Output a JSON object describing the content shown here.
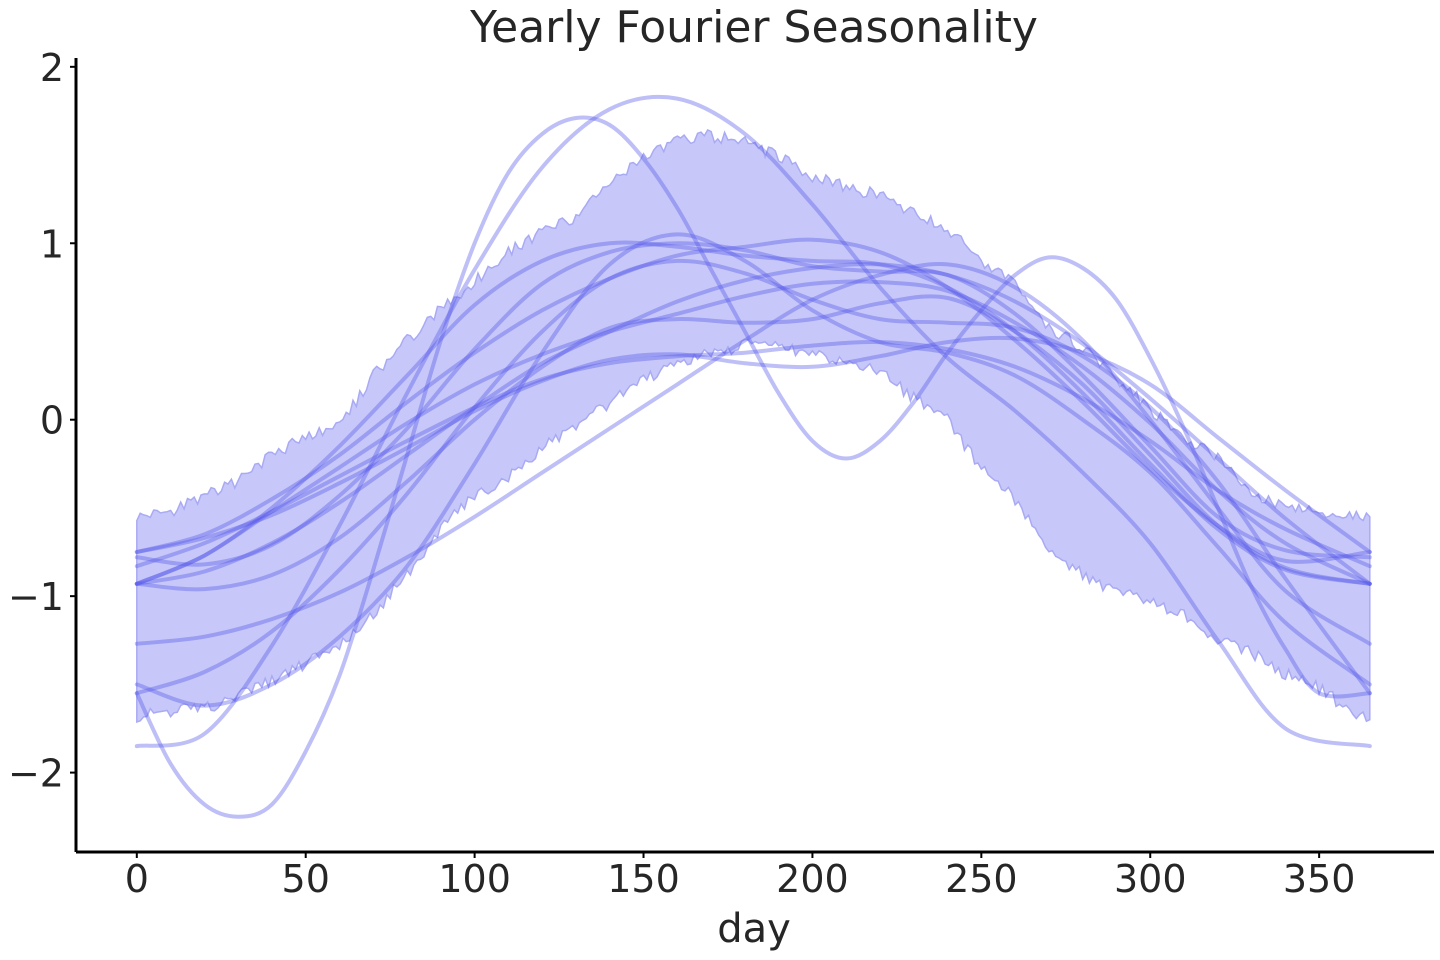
{
  "chart_data": {
    "type": "line",
    "title": "Yearly Fourier Seasonality",
    "xlabel": "day",
    "ylabel": "",
    "xlim": [
      -18,
      384
    ],
    "ylim": [
      -2.45,
      2.05
    ],
    "x_ticks": [
      0,
      50,
      100,
      150,
      200,
      250,
      300,
      350
    ],
    "x_tick_labels": [
      "0",
      "50",
      "100",
      "150",
      "200",
      "250",
      "300",
      "350"
    ],
    "y_ticks": [
      2,
      1,
      0,
      -1,
      -2
    ],
    "y_tick_labels": [
      "2",
      "1",
      "0",
      "−1",
      "−2"
    ],
    "grid": false,
    "colors": {
      "band": "#c7c8f9",
      "band_edge": "#a9aaf4",
      "lines": "#5558ea"
    },
    "band": {
      "x": [
        0,
        10,
        20,
        30,
        40,
        50,
        60,
        70,
        80,
        90,
        100,
        110,
        120,
        130,
        140,
        150,
        160,
        170,
        180,
        190,
        200,
        210,
        220,
        230,
        240,
        250,
        260,
        270,
        280,
        290,
        300,
        310,
        320,
        330,
        340,
        350,
        360,
        365
      ],
      "lower": [
        -1.68,
        -1.65,
        -1.64,
        -1.57,
        -1.48,
        -1.38,
        -1.28,
        -1.1,
        -0.88,
        -0.62,
        -0.43,
        -0.33,
        -0.15,
        -0.05,
        0.1,
        0.22,
        0.33,
        0.38,
        0.42,
        0.41,
        0.38,
        0.33,
        0.27,
        0.12,
        0.0,
        -0.28,
        -0.45,
        -0.72,
        -0.88,
        -0.98,
        -1.02,
        -1.11,
        -1.25,
        -1.32,
        -1.44,
        -1.52,
        -1.66,
        -1.7
      ],
      "upper": [
        -0.55,
        -0.52,
        -0.43,
        -0.35,
        -0.2,
        -0.1,
        -0.04,
        0.25,
        0.45,
        0.63,
        0.78,
        0.95,
        1.07,
        1.15,
        1.34,
        1.48,
        1.58,
        1.61,
        1.57,
        1.49,
        1.38,
        1.32,
        1.27,
        1.17,
        1.08,
        0.9,
        0.76,
        0.53,
        0.4,
        0.24,
        0.05,
        -0.1,
        -0.22,
        -0.41,
        -0.5,
        -0.53,
        -0.55,
        -0.55
      ]
    },
    "series": [
      {
        "x": [
          0,
          20,
          40,
          60,
          80,
          100,
          120,
          140,
          160,
          180,
          200,
          220,
          240,
          260,
          280,
          300,
          320,
          340,
          365
        ],
        "values": [
          -1.5,
          -1.62,
          -1.5,
          -1.23,
          -0.83,
          -0.25,
          0.38,
          0.88,
          1.05,
          0.9,
          0.62,
          0.44,
          0.38,
          0.25,
          0.0,
          -0.3,
          -0.72,
          -1.15,
          -1.5
        ]
      },
      {
        "x": [
          0,
          20,
          40,
          60,
          80,
          100,
          120,
          140,
          160,
          180,
          200,
          220,
          240,
          260,
          280,
          300,
          320,
          340,
          365
        ],
        "values": [
          -1.27,
          -1.23,
          -1.13,
          -0.98,
          -0.78,
          -0.55,
          -0.3,
          -0.05,
          0.2,
          0.45,
          0.68,
          0.82,
          0.88,
          0.75,
          0.45,
          0.0,
          -0.5,
          -0.97,
          -1.27
        ]
      },
      {
        "x": [
          0,
          20,
          40,
          60,
          80,
          100,
          120,
          140,
          160,
          180,
          200,
          220,
          240,
          260,
          280,
          300,
          320,
          340,
          365
        ],
        "values": [
          -0.93,
          -0.96,
          -0.88,
          -0.67,
          -0.35,
          0.0,
          0.3,
          0.52,
          0.57,
          0.55,
          0.57,
          0.66,
          0.69,
          0.5,
          0.2,
          -0.2,
          -0.6,
          -0.84,
          -0.93
        ]
      },
      {
        "x": [
          0,
          20,
          40,
          60,
          80,
          100,
          120,
          140,
          160,
          180,
          200,
          220,
          240,
          260,
          280,
          300,
          320,
          340,
          365
        ],
        "values": [
          -0.78,
          -0.82,
          -0.71,
          -0.43,
          -0.05,
          0.4,
          0.77,
          0.95,
          1.0,
          0.96,
          0.87,
          0.84,
          0.82,
          0.6,
          0.25,
          -0.15,
          -0.55,
          -0.74,
          -0.78
        ]
      },
      {
        "x": [
          0,
          20,
          40,
          60,
          80,
          100,
          120,
          140,
          160,
          180,
          200,
          220,
          240,
          260,
          280,
          300,
          320,
          340,
          365
        ],
        "values": [
          -0.93,
          -0.86,
          -0.7,
          -0.47,
          -0.2,
          0.07,
          0.32,
          0.5,
          0.67,
          0.79,
          0.86,
          0.88,
          0.82,
          0.67,
          0.43,
          0.12,
          -0.22,
          -0.56,
          -0.93
        ]
      },
      {
        "x": [
          0,
          20,
          40,
          60,
          80,
          100,
          120,
          140,
          160,
          180,
          200,
          220,
          240,
          260,
          280,
          300,
          320,
          340,
          365
        ],
        "values": [
          -0.75,
          -0.67,
          -0.54,
          -0.36,
          -0.16,
          0.05,
          0.22,
          0.34,
          0.37,
          0.32,
          0.3,
          0.36,
          0.44,
          0.46,
          0.38,
          0.2,
          -0.1,
          -0.4,
          -0.75
        ]
      },
      {
        "x": [
          0,
          20,
          40,
          60,
          80,
          100,
          120,
          140,
          160,
          180,
          200,
          220,
          240,
          260,
          280,
          300,
          320,
          340,
          365
        ],
        "values": [
          -0.83,
          -0.7,
          -0.52,
          -0.32,
          -0.12,
          0.07,
          0.23,
          0.32,
          0.36,
          0.38,
          0.42,
          0.44,
          0.4,
          0.3,
          0.12,
          -0.12,
          -0.4,
          -0.62,
          -0.83
        ]
      },
      {
        "x": [
          0,
          20,
          40,
          60,
          80,
          100,
          120,
          140,
          160,
          180,
          200,
          220,
          240,
          260,
          280,
          300,
          320,
          340,
          365
        ],
        "values": [
          -1.55,
          -1.43,
          -1.2,
          -0.85,
          -0.42,
          0.07,
          0.5,
          0.8,
          0.9,
          0.83,
          0.68,
          0.57,
          0.55,
          0.52,
          0.36,
          0.07,
          -0.35,
          -0.9,
          -1.55
        ]
      },
      {
        "x": [
          0,
          20,
          40,
          60,
          80,
          100,
          120,
          140,
          160,
          180,
          200,
          220,
          240,
          260,
          280,
          300,
          320,
          340,
          365
        ],
        "values": [
          -0.93,
          -0.77,
          -0.52,
          -0.27,
          -0.02,
          0.2,
          0.37,
          0.5,
          0.6,
          0.7,
          0.77,
          0.78,
          0.73,
          0.55,
          0.3,
          -0.02,
          -0.4,
          -0.7,
          -0.93
        ]
      },
      {
        "x": [
          0,
          20,
          40,
          60,
          80,
          100,
          120,
          140,
          160,
          180,
          200,
          220,
          240,
          260,
          280,
          300,
          320,
          340,
          365
        ],
        "values": [
          -1.85,
          -1.78,
          -1.28,
          -0.6,
          0.15,
          0.85,
          1.43,
          1.76,
          1.82,
          1.62,
          1.22,
          0.75,
          0.35,
          0.05,
          -0.3,
          -0.7,
          -1.25,
          -1.75,
          -1.85
        ]
      },
      {
        "x": [
          0,
          10,
          20,
          30,
          40,
          50,
          60,
          70,
          80,
          90,
          100,
          110,
          120,
          130,
          140,
          150,
          160,
          170,
          180,
          190,
          200,
          210,
          220,
          230,
          240,
          250,
          260,
          270,
          280,
          290,
          300,
          310,
          320,
          330,
          340,
          350,
          365
        ],
        "values": [
          -1.55,
          -1.95,
          -2.18,
          -2.25,
          -2.18,
          -1.88,
          -1.45,
          -0.85,
          -0.2,
          0.45,
          1.0,
          1.4,
          1.62,
          1.71,
          1.67,
          1.48,
          1.2,
          0.85,
          0.5,
          0.15,
          -0.12,
          -0.22,
          -0.12,
          0.1,
          0.38,
          0.62,
          0.82,
          0.92,
          0.86,
          0.68,
          0.35,
          -0.05,
          -0.5,
          -0.95,
          -1.3,
          -1.55,
          -1.55
        ]
      },
      {
        "x": [
          0,
          20,
          40,
          60,
          80,
          100,
          120,
          140,
          160,
          180,
          200,
          220,
          240,
          260,
          280,
          300,
          320,
          340,
          365
        ],
        "values": [
          -0.93,
          -0.77,
          -0.5,
          -0.15,
          0.25,
          0.65,
          0.9,
          1.0,
          0.98,
          0.93,
          0.9,
          0.88,
          0.75,
          0.5,
          0.15,
          -0.25,
          -0.62,
          -0.85,
          -0.93
        ]
      },
      {
        "x": [
          0,
          20,
          40,
          60,
          80,
          100,
          120,
          140,
          160,
          180,
          200,
          220,
          240,
          260,
          280,
          300,
          320,
          340,
          365
        ],
        "values": [
          -0.75,
          -0.65,
          -0.45,
          -0.2,
          0.1,
          0.38,
          0.62,
          0.8,
          0.93,
          0.98,
          1.02,
          0.95,
          0.75,
          0.45,
          0.1,
          -0.28,
          -0.6,
          -0.8,
          -0.75
        ]
      }
    ]
  }
}
